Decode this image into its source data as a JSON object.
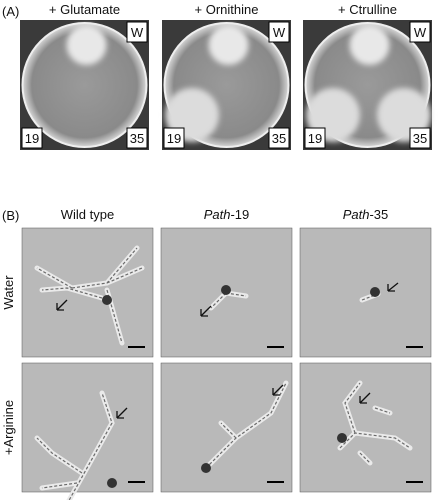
{
  "panel_a": {
    "label": "(A)",
    "columns": [
      {
        "title": "+ Glutamate",
        "labels": [
          "W",
          "19",
          "35"
        ]
      },
      {
        "title": "+ Ornithine",
        "labels": [
          "W",
          "19",
          "35"
        ]
      },
      {
        "title": "+ Ctrulline",
        "labels": [
          "W",
          "19",
          "35"
        ]
      }
    ]
  },
  "panel_b": {
    "label": "(B)",
    "columns": [
      {
        "title": "Wild type"
      },
      {
        "italic": "Path",
        "title": "-19"
      },
      {
        "italic": "Path",
        "title": "-35"
      }
    ],
    "rows": [
      "Water",
      "+Arginine"
    ]
  }
}
